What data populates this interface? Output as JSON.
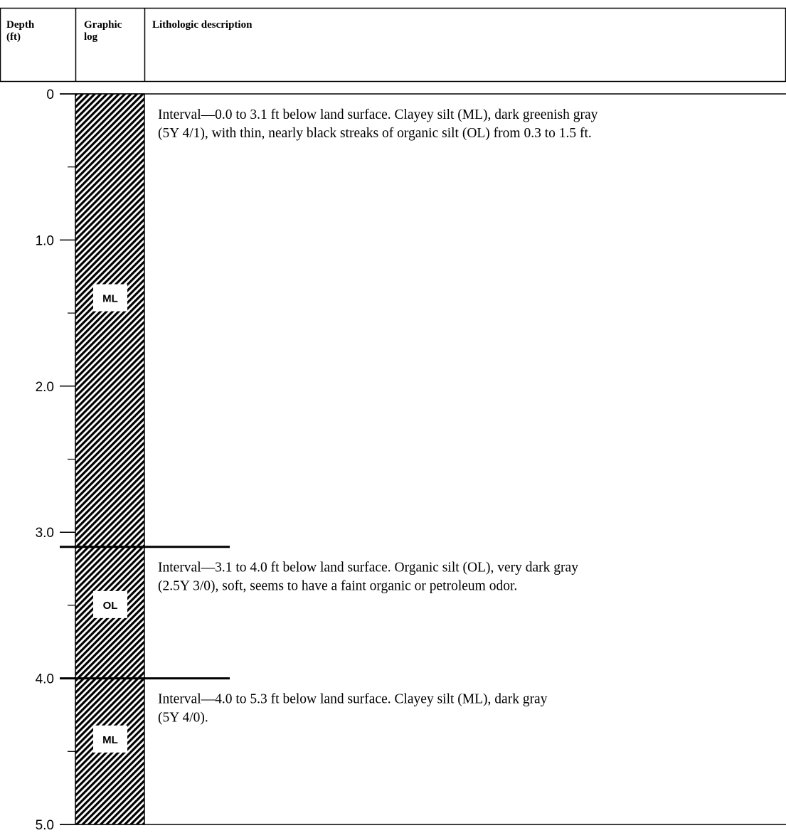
{
  "header": {
    "depth_label": [
      "Depth",
      "(ft)"
    ],
    "graphic_label": [
      "Graphic",
      "log"
    ],
    "description_label": "Lithologic description"
  },
  "depth_axis": {
    "min": 0,
    "max": 5.0,
    "major_ticks": [
      0,
      1.0,
      2.0,
      3.0,
      4.0,
      5.0
    ],
    "major_tick_labels": [
      "0",
      "1.0",
      "2.0",
      "3.0",
      "4.0",
      "5.0"
    ],
    "minor_ticks": [
      0.5,
      1.5,
      2.5,
      3.5,
      4.5
    ]
  },
  "intervals": [
    {
      "top": 0.0,
      "bottom": 3.1,
      "unit": "ML",
      "label_depth": 1.4,
      "description": [
        "Interval—0.0 to 3.1 ft below land surface. Clayey silt (ML), dark greenish gray",
        "(5Y 4/1), with thin, nearly black streaks of organic silt (OL) from 0.3 to 1.5 ft."
      ]
    },
    {
      "top": 3.1,
      "bottom": 4.0,
      "unit": "OL",
      "label_depth": 3.5,
      "description": [
        "Interval—3.1 to 4.0 ft below land surface. Organic silt (OL), very dark gray",
        "(2.5Y 3/0), soft, seems to have a faint organic or petroleum odor."
      ]
    },
    {
      "top": 4.0,
      "bottom": 5.3,
      "unit": "ML",
      "label_depth": 4.42,
      "description": [
        "Interval—4.0 to 5.3 ft below land surface. Clayey silt (ML), dark gray",
        "(5Y 4/0)."
      ]
    }
  ],
  "colors": {
    "line": "#000000",
    "background": "#ffffff"
  }
}
